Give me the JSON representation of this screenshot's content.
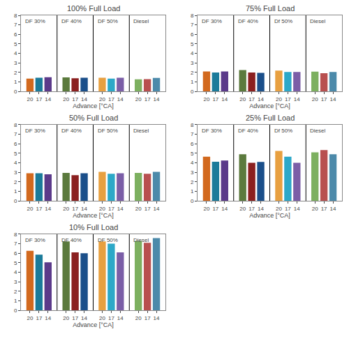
{
  "chart_data": [
    {
      "type": "bar",
      "title": "100% Full Load",
      "xlabel": "Advance [°CA]",
      "categories": [
        "20",
        "17",
        "14",
        "20",
        "17",
        "14",
        "20",
        "17",
        "14",
        "20",
        "17",
        "14"
      ],
      "values": [
        1.35,
        1.45,
        1.5,
        1.48,
        1.38,
        1.45,
        1.45,
        1.35,
        1.45,
        1.28,
        1.3,
        1.42
      ],
      "colors": [
        "#D2691E",
        "#1B7B9A",
        "#5B3A8A",
        "#5B7A3D",
        "#8B2020",
        "#1B4F8A",
        "#E8A040",
        "#2CA8C8",
        "#7B5EA7",
        "#7DB060",
        "#B85050",
        "#4C8AAA"
      ],
      "annotations": [
        "DF 30%",
        "DF 40%",
        "DF 50%",
        "Diesel"
      ],
      "ylim": [
        0,
        8
      ],
      "yticks": [
        0,
        1,
        2,
        3,
        4,
        5,
        6,
        7,
        8
      ],
      "grid": false
    },
    {
      "type": "bar",
      "title": "75% Full Load",
      "xlabel": "Advance [°CA]",
      "categories": [
        "20",
        "17",
        "14",
        "20",
        "17",
        "14",
        "20",
        "17",
        "14",
        "20",
        "17",
        "14"
      ],
      "values": [
        2.1,
        2.0,
        2.1,
        2.25,
        2.0,
        1.95,
        2.2,
        2.05,
        2.05,
        2.08,
        1.92,
        2.05
      ],
      "colors": [
        "#D2691E",
        "#1B7B9A",
        "#5B3A8A",
        "#5B7A3D",
        "#8B2020",
        "#1B4F8A",
        "#E8A040",
        "#2CA8C8",
        "#7B5EA7",
        "#7DB060",
        "#B85050",
        "#4C8AAA"
      ],
      "annotations": [
        "DF 30%",
        "DF 40%",
        "Df 50%",
        "Diesel"
      ],
      "ylim": [
        0,
        8
      ],
      "yticks": [
        0,
        1,
        2,
        3,
        4,
        5,
        6,
        7,
        8
      ],
      "grid": false
    },
    {
      "type": "bar",
      "title": "50% Full Load",
      "xlabel": "Advance [°CA]",
      "categories": [
        "20",
        "17",
        "14",
        "20",
        "17",
        "14",
        "20",
        "17",
        "14",
        "20",
        "17",
        "14"
      ],
      "values": [
        2.9,
        2.9,
        2.8,
        2.95,
        2.7,
        2.9,
        3.05,
        2.85,
        2.9,
        2.95,
        2.85,
        3.05
      ],
      "colors": [
        "#D2691E",
        "#1B7B9A",
        "#5B3A8A",
        "#5B7A3D",
        "#8B2020",
        "#1B4F8A",
        "#E8A040",
        "#2CA8C8",
        "#7B5EA7",
        "#7DB060",
        "#B85050",
        "#4C8AAA"
      ],
      "annotations": [
        "DF 30%",
        "DF 40%",
        "DF 50%",
        "Diesel"
      ],
      "ylim": [
        0,
        8
      ],
      "yticks": [
        0,
        1,
        2,
        3,
        4,
        5,
        6,
        7,
        8
      ],
      "grid": false
    },
    {
      "type": "bar",
      "title": "25% Full Load",
      "xlabel": "Advance [°CA]",
      "categories": [
        "20",
        "17",
        "14",
        "20",
        "17",
        "14",
        "20",
        "17",
        "14",
        "20",
        "17",
        "14"
      ],
      "values": [
        4.65,
        4.12,
        4.25,
        4.9,
        4.0,
        4.1,
        5.25,
        4.65,
        4.0,
        5.1,
        5.35,
        4.9
      ],
      "colors": [
        "#D2691E",
        "#1B7B9A",
        "#5B3A8A",
        "#5B7A3D",
        "#8B2020",
        "#1B4F8A",
        "#E8A040",
        "#2CA8C8",
        "#7B5EA7",
        "#7DB060",
        "#B85050",
        "#4C8AAA"
      ],
      "annotations": [
        "DF 30%",
        "DF 40%",
        "Df 50%",
        "Diesel"
      ],
      "ylim": [
        0,
        8
      ],
      "yticks": [
        0,
        1,
        2,
        3,
        4,
        5,
        6,
        7,
        8
      ],
      "grid": false
    },
    {
      "type": "bar",
      "title": "10% Full Load",
      "xlabel": "Advance [°CA]",
      "categories": [
        "20",
        "17",
        "14",
        "20",
        "17",
        "14",
        "20",
        "17",
        "14",
        "20",
        "17",
        "14"
      ],
      "values": [
        6.25,
        5.85,
        5.05,
        7.25,
        6.1,
        6.0,
        7.25,
        7.0,
        6.1,
        7.3,
        7.1,
        7.6
      ],
      "colors": [
        "#D2691E",
        "#1B7B9A",
        "#5B3A8A",
        "#5B7A3D",
        "#8B2020",
        "#1B4F8A",
        "#E8A040",
        "#2CA8C8",
        "#7B5EA7",
        "#7DB060",
        "#B85050",
        "#4C8AAA"
      ],
      "annotations": [
        "DF 30%",
        "DF 40%",
        "DF 50%",
        "Diesel"
      ],
      "ylim": [
        0,
        8
      ],
      "yticks": [
        0,
        1,
        2,
        3,
        4,
        5,
        6,
        7,
        8
      ],
      "grid": false
    }
  ]
}
